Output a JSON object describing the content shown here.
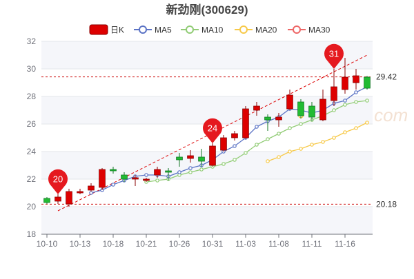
{
  "chart_data": {
    "type": "candlestick",
    "title": "新劲刚(300629)",
    "watermark": "南方财富网 southmoney.com",
    "ylim": [
      18,
      32
    ],
    "yticks": [
      18,
      20,
      22,
      24,
      26,
      28,
      30,
      32
    ],
    "legend_placement": "top-center",
    "legend": [
      {
        "name": "日K",
        "color": "#dd0000",
        "style": "candle"
      },
      {
        "name": "MA5",
        "color": "#5b73c5",
        "style": "line"
      },
      {
        "name": "MA10",
        "color": "#91cc75",
        "style": "line"
      },
      {
        "name": "MA20",
        "color": "#f7c948",
        "style": "line"
      },
      {
        "name": "MA30",
        "color": "#ee6666",
        "style": "line"
      }
    ],
    "colors": {
      "up": "#dd0000",
      "down": "#22bb33",
      "trend": "#dd0000"
    },
    "dates": [
      "10-10",
      "10-11",
      "10-12",
      "10-13",
      "10-14",
      "10-17",
      "10-18",
      "10-19",
      "10-20",
      "10-21",
      "10-24",
      "10-25",
      "10-26",
      "10-27",
      "10-28",
      "10-31",
      "11-01",
      "11-02",
      "11-03",
      "11-04",
      "11-07",
      "11-08",
      "11-09",
      "11-10",
      "11-11",
      "11-14",
      "11-15",
      "11-16",
      "11-17",
      "11-18"
    ],
    "x_tick_labels": [
      "10-10",
      "10-13",
      "10-18",
      "10-21",
      "10-26",
      "10-31",
      "11-03",
      "11-08",
      "11-11",
      "11-16"
    ],
    "candles": [
      {
        "o": 20.6,
        "c": 20.3,
        "h": 20.7,
        "l": 20.2
      },
      {
        "o": 20.4,
        "c": 20.7,
        "h": 20.9,
        "l": 20.2
      },
      {
        "o": 20.2,
        "c": 21.1,
        "h": 21.3,
        "l": 20.0
      },
      {
        "o": 21.0,
        "c": 21.1,
        "h": 21.3,
        "l": 20.9
      },
      {
        "o": 21.2,
        "c": 21.5,
        "h": 21.7,
        "l": 21.1
      },
      {
        "o": 21.4,
        "c": 22.7,
        "h": 22.8,
        "l": 21.2
      },
      {
        "o": 22.7,
        "c": 22.6,
        "h": 22.9,
        "l": 22.4
      },
      {
        "o": 22.3,
        "c": 22.0,
        "h": 22.5,
        "l": 21.8
      },
      {
        "o": 22.0,
        "c": 22.1,
        "h": 22.3,
        "l": 21.5
      },
      {
        "o": 21.9,
        "c": 22.0,
        "h": 22.1,
        "l": 21.8
      },
      {
        "o": 22.3,
        "c": 22.7,
        "h": 22.9,
        "l": 22.1
      },
      {
        "o": 22.6,
        "c": 22.5,
        "h": 22.8,
        "l": 21.9
      },
      {
        "o": 23.6,
        "c": 23.4,
        "h": 23.9,
        "l": 22.9
      },
      {
        "o": 23.5,
        "c": 23.7,
        "h": 24.1,
        "l": 23.2
      },
      {
        "o": 23.6,
        "c": 23.3,
        "h": 24.2,
        "l": 22.9
      },
      {
        "o": 23.0,
        "c": 24.4,
        "h": 24.6,
        "l": 22.9
      },
      {
        "o": 24.1,
        "c": 25.0,
        "h": 25.2,
        "l": 24.0
      },
      {
        "o": 25.0,
        "c": 25.3,
        "h": 25.5,
        "l": 24.8
      },
      {
        "o": 25.0,
        "c": 27.1,
        "h": 27.3,
        "l": 24.9
      },
      {
        "o": 27.0,
        "c": 27.3,
        "h": 27.6,
        "l": 26.6
      },
      {
        "o": 26.5,
        "c": 26.3,
        "h": 26.7,
        "l": 25.5
      },
      {
        "o": 26.3,
        "c": 26.5,
        "h": 26.8,
        "l": 25.8
      },
      {
        "o": 27.1,
        "c": 28.1,
        "h": 28.5,
        "l": 27.0
      },
      {
        "o": 27.6,
        "c": 26.6,
        "h": 27.8,
        "l": 26.4
      },
      {
        "o": 27.3,
        "c": 26.5,
        "h": 27.6,
        "l": 26.2
      },
      {
        "o": 26.3,
        "c": 27.8,
        "h": 28.5,
        "l": 26.2
      },
      {
        "o": 27.7,
        "c": 28.7,
        "h": 30.0,
        "l": 27.3
      },
      {
        "o": 28.5,
        "c": 29.4,
        "h": 30.8,
        "l": 28.2
      },
      {
        "o": 29.0,
        "c": 29.5,
        "h": 30.0,
        "l": 28.5
      },
      {
        "o": 29.4,
        "c": 28.6,
        "h": 29.5,
        "l": 28.5
      }
    ],
    "ma5": [
      null,
      null,
      null,
      null,
      21.0,
      21.2,
      21.6,
      21.9,
      22.2,
      22.3,
      22.3,
      22.2,
      22.5,
      22.8,
      23.0,
      23.4,
      24.0,
      24.4,
      25.0,
      25.8,
      26.2,
      26.5,
      27.1,
      27.0,
      26.8,
      27.0,
      27.5,
      27.7,
      28.3,
      28.7
    ],
    "ma10": [
      null,
      null,
      null,
      null,
      null,
      null,
      null,
      null,
      null,
      21.8,
      21.9,
      22.0,
      22.3,
      22.5,
      22.7,
      22.9,
      23.1,
      23.4,
      23.9,
      24.5,
      24.9,
      25.3,
      25.7,
      26.0,
      26.3,
      26.6,
      27.0,
      27.4,
      27.6,
      27.7
    ],
    "ma20": [
      null,
      null,
      null,
      null,
      null,
      null,
      null,
      null,
      null,
      null,
      null,
      null,
      null,
      null,
      null,
      null,
      null,
      null,
      null,
      null,
      23.3,
      23.6,
      24.0,
      24.2,
      24.5,
      24.7,
      25.0,
      25.4,
      25.7,
      26.1
    ],
    "trend_line": [
      {
        "i": 1,
        "y": 19.7
      },
      {
        "i": 29,
        "y": 31.0
      }
    ],
    "reference_lines": [
      {
        "value": 29.42,
        "label": "29.42"
      },
      {
        "value": 20.18,
        "label": "20.18"
      }
    ],
    "markers": [
      {
        "i": 1,
        "label": "20"
      },
      {
        "i": 15,
        "label": "24"
      },
      {
        "i": 26,
        "label": "31"
      }
    ],
    "ma_dots": [
      {
        "i": 23,
        "value": 26.6,
        "color": "#f7c948"
      },
      {
        "i": 25,
        "value": 26.7,
        "color": "#ee6666"
      }
    ]
  }
}
